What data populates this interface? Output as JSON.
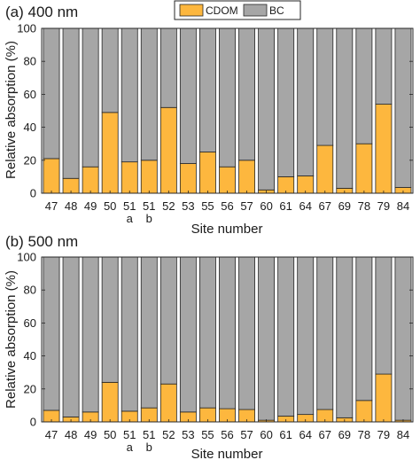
{
  "legend": [
    {
      "name": "CDOM",
      "color": "#FDB73E"
    },
    {
      "name": "BC",
      "color": "#A6A6A6"
    }
  ],
  "chart_data": [
    {
      "type": "bar",
      "stacked": true,
      "title": "(a) 400 nm",
      "xlabel": "Site number",
      "ylabel": "Relative absorption (%)",
      "ylim": [
        0,
        100
      ],
      "yticks": [
        "0",
        "20",
        "40",
        "60",
        "80",
        "100"
      ],
      "categories": [
        "47",
        "48",
        "49",
        "50",
        "51",
        "51",
        "52",
        "53",
        "55",
        "56",
        "57",
        "60",
        "61",
        "64",
        "67",
        "69",
        "78",
        "79",
        "84"
      ],
      "sublabels": [
        "",
        "",
        "",
        "",
        "a",
        "b",
        "",
        "",
        "",
        "",
        "",
        "",
        "",
        "",
        "",
        "",
        "",
        "",
        ""
      ],
      "series": [
        {
          "name": "CDOM",
          "values": [
            21,
            9,
            16,
            49,
            19,
            20,
            52,
            18,
            25,
            16,
            20,
            2,
            10,
            10.5,
            29,
            3,
            30,
            54,
            3.5
          ]
        },
        {
          "name": "BC",
          "values": [
            79,
            91,
            84,
            51,
            81,
            80,
            48,
            82,
            75,
            84,
            80,
            98,
            90,
            89.5,
            71,
            97,
            70,
            46,
            96.5
          ]
        }
      ]
    },
    {
      "type": "bar",
      "stacked": true,
      "title": "(b) 500 nm",
      "xlabel": "Site number",
      "ylabel": "Relative absorption (%)",
      "ylim": [
        0,
        100
      ],
      "yticks": [
        "0",
        "20",
        "40",
        "60",
        "80",
        "100"
      ],
      "categories": [
        "47",
        "48",
        "49",
        "50",
        "51",
        "51",
        "52",
        "53",
        "55",
        "56",
        "57",
        "60",
        "61",
        "64",
        "67",
        "69",
        "78",
        "79",
        "84"
      ],
      "sublabels": [
        "",
        "",
        "",
        "",
        "a",
        "b",
        "",
        "",
        "",
        "",
        "",
        "",
        "",
        "",
        "",
        "",
        "",
        "",
        ""
      ],
      "series": [
        {
          "name": "CDOM",
          "values": [
            7,
            3,
            6,
            24,
            6.5,
            8.5,
            23,
            6,
            8.5,
            8,
            7.5,
            1,
            3.5,
            4.5,
            7.5,
            2.5,
            13,
            29,
            1
          ]
        },
        {
          "name": "BC",
          "values": [
            93,
            97,
            94,
            76,
            93.5,
            91.5,
            77,
            94,
            91.5,
            92,
            92.5,
            99,
            96.5,
            95.5,
            92.5,
            97.5,
            87,
            71,
            99
          ]
        }
      ]
    }
  ]
}
